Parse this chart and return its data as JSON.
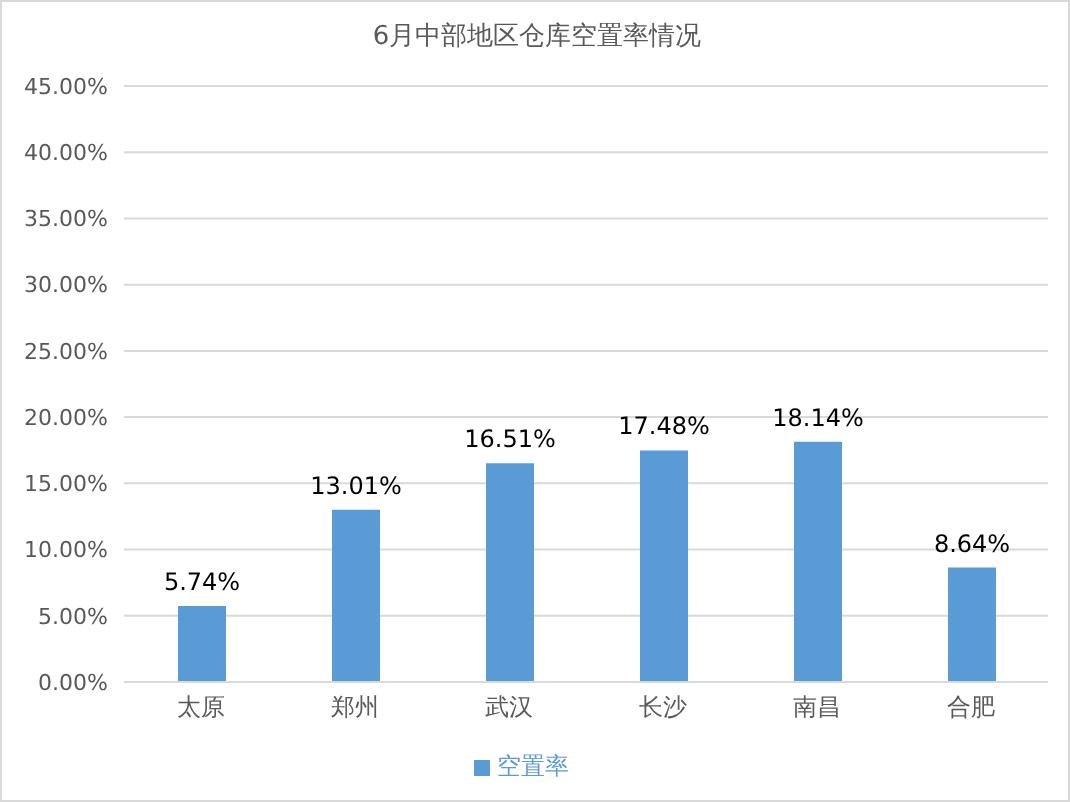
{
  "chart_data": {
    "type": "bar",
    "title": "6月中部地区仓库空置率情况",
    "categories": [
      "太原",
      "郑州",
      "武汉",
      "长沙",
      "南昌",
      "合肥"
    ],
    "series": [
      {
        "name": "空置率",
        "color": "#5b9bd5",
        "values": [
          5.74,
          13.01,
          16.51,
          17.48,
          18.14,
          8.64
        ],
        "value_labels": [
          "5.74%",
          "13.01%",
          "16.51%",
          "17.48%",
          "18.14%",
          "8.64%"
        ]
      }
    ],
    "ylim": [
      0,
      45
    ],
    "yticks": [
      {
        "value": 0,
        "label": "0.00%"
      },
      {
        "value": 5,
        "label": "5.00%"
      },
      {
        "value": 10,
        "label": "10.00%"
      },
      {
        "value": 15,
        "label": "15.00%"
      },
      {
        "value": 20,
        "label": "20.00%"
      },
      {
        "value": 25,
        "label": "25.00%"
      },
      {
        "value": 30,
        "label": "30.00%"
      },
      {
        "value": 35,
        "label": "35.00%"
      },
      {
        "value": 40,
        "label": "40.00%"
      },
      {
        "value": 45,
        "label": "45.00%"
      }
    ],
    "grid": "y",
    "legend": "bottom"
  }
}
